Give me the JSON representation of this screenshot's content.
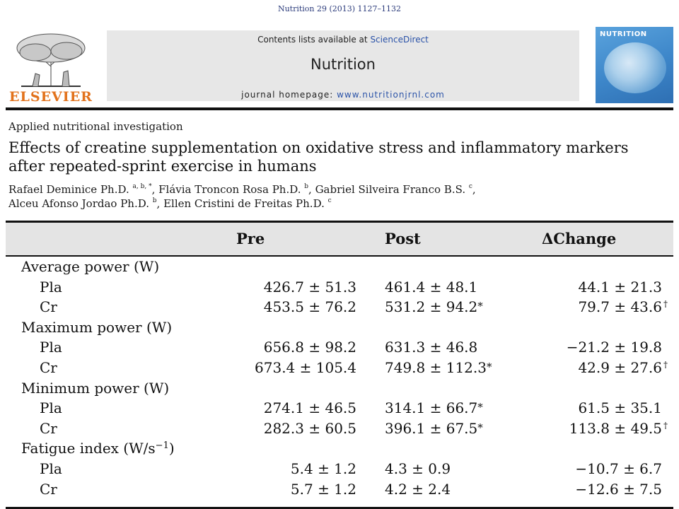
{
  "citation": "Nutrition 29 (2013) 1127–1132",
  "banner": {
    "publisher": "ELSEVIER",
    "contents_prefix": "Contents lists available at ",
    "contents_link": "ScienceDirect",
    "journal_name": "Nutrition",
    "homepage_prefix": "journal homepage: ",
    "homepage_url": "www.nutritionjrnl.com",
    "cover_title": "NUTRITION"
  },
  "article": {
    "section": "Applied nutritional investigation",
    "title": "Effects of creatine supplementation on oxidative stress and inflammatory markers after repeated-sprint exercise in humans",
    "authors": [
      {
        "name": "Rafael Deminice Ph.D.",
        "aff": "a, b, *",
        "sep": ", "
      },
      {
        "name": "Flávia Troncon Rosa Ph.D.",
        "aff": "b",
        "sep": ", "
      },
      {
        "name": "Gabriel Silveira Franco B.S.",
        "aff": "c",
        "sep": ","
      },
      {
        "name": "Alceu Afonso Jordao Ph.D.",
        "aff": "b",
        "sep": ", "
      },
      {
        "name": "Ellen Cristini de Freitas Ph.D.",
        "aff": "c",
        "sep": ""
      }
    ]
  },
  "table": {
    "columns": {
      "pre": "Pre",
      "post": "Post",
      "change": "ΔChange"
    },
    "rows": [
      {
        "kind": "group",
        "label": "Average power (W)"
      },
      {
        "kind": "data",
        "label": "Pla",
        "pre": "426.7 ± 51.3",
        "post": "461.4 ± 48.1",
        "post_mark": "",
        "change": "44.1 ± 21.3",
        "change_mark": ""
      },
      {
        "kind": "data",
        "label": "Cr",
        "pre": "453.5 ± 76.2",
        "post": "531.2 ± 94.2",
        "post_mark": "*",
        "change": "79.7 ± 43.6",
        "change_mark": "†"
      },
      {
        "kind": "group",
        "label": "Maximum power (W)"
      },
      {
        "kind": "data",
        "label": "Pla",
        "pre": "656.8 ± 98.2",
        "post": "631.3 ± 46.8",
        "post_mark": "",
        "change": "−21.2 ± 19.8",
        "change_mark": ""
      },
      {
        "kind": "data",
        "label": "Cr",
        "pre": "673.4 ± 105.4",
        "post": "749.8 ± 112.3",
        "post_mark": "*",
        "change": "42.9 ± 27.6",
        "change_mark": "†"
      },
      {
        "kind": "group",
        "label": "Minimum power (W)"
      },
      {
        "kind": "data",
        "label": "Pla",
        "pre": "274.1 ± 46.5",
        "post": "314.1 ± 66.7",
        "post_mark": "*",
        "change": "61.5 ± 35.1",
        "change_mark": ""
      },
      {
        "kind": "data",
        "label": "Cr",
        "pre": "282.3 ± 60.5",
        "post": "396.1 ± 67.5",
        "post_mark": "*",
        "change": "113.8 ± 49.5",
        "change_mark": "†"
      },
      {
        "kind": "group",
        "label": "Fatigue index (W/s",
        "label_sup": "−1",
        "label_end": ")"
      },
      {
        "kind": "data",
        "label": "Pla",
        "pre": "5.4 ± 1.2",
        "post": "4.3 ± 0.9",
        "post_mark": "",
        "change": "−10.7 ± 6.7",
        "change_mark": ""
      },
      {
        "kind": "data",
        "label": "Cr",
        "pre": "5.7 ± 1.2",
        "post": "4.2 ± 2.4",
        "post_mark": "",
        "change": "−12.6 ± 7.5",
        "change_mark": ""
      }
    ]
  }
}
